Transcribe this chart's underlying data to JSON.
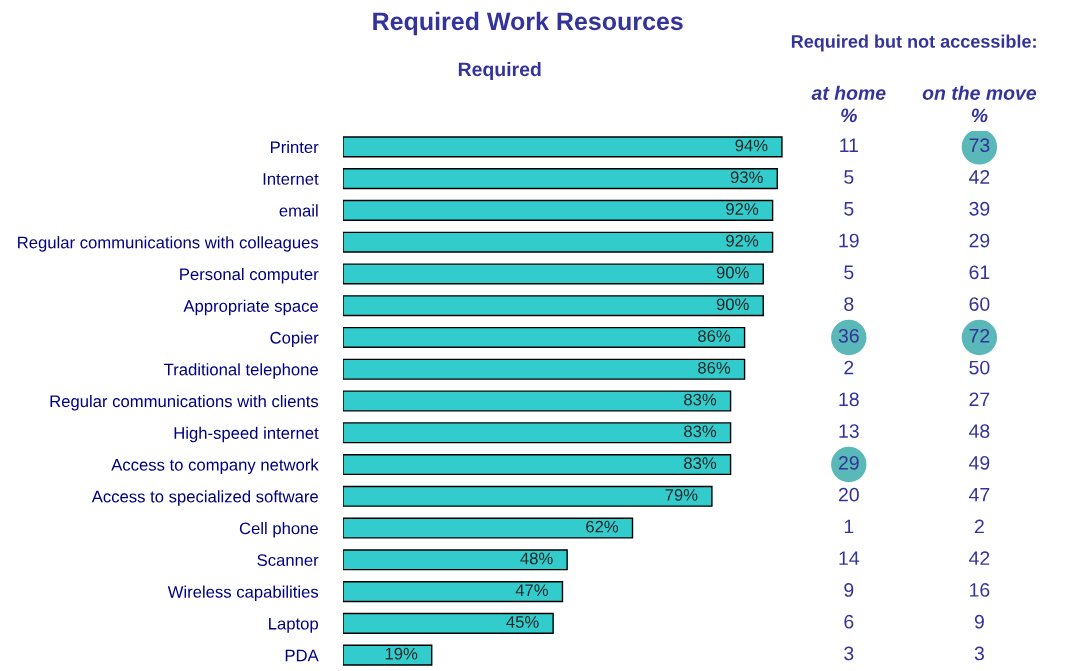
{
  "chart_data": [
    {
      "type": "bar",
      "orientation": "horizontal",
      "title": "Required Work Resources",
      "subtitle": "Required",
      "categories": [
        "Printer",
        "Internet",
        "email",
        "Regular communications with colleagues",
        "Personal computer",
        "Appropriate space",
        "Copier",
        "Traditional telephone",
        "Regular communications with clients",
        "High-speed internet",
        "Access to company network",
        "Access to specialized software",
        "Cell phone",
        "Scanner",
        "Wireless capabilities",
        "Laptop",
        "PDA"
      ],
      "values": [
        94,
        93,
        92,
        92,
        90,
        90,
        86,
        86,
        83,
        83,
        83,
        79,
        62,
        48,
        47,
        45,
        19
      ],
      "value_labels": [
        "94%",
        "93%",
        "92%",
        "92%",
        "90%",
        "90%",
        "86%",
        "86%",
        "83%",
        "83%",
        "83%",
        "79%",
        "62%",
        "48%",
        "47%",
        "45%",
        "19%"
      ],
      "color": "#33cccc",
      "tick_labels": "y",
      "grid": false,
      "legend": false
    },
    {
      "type": "heatmap",
      "title": "Required but not accessible:",
      "data_labels": true,
      "tick_labels": "x",
      "categories": [
        "at home\n%",
        "on the move\n%"
      ],
      "y_categories": [
        null,
        null,
        null,
        null,
        null,
        null,
        null,
        null,
        null,
        null,
        null,
        null,
        null,
        null,
        null,
        null,
        null
      ],
      "cells": [
        [
          11,
          73
        ],
        [
          5,
          42
        ],
        [
          5,
          39
        ],
        [
          19,
          29
        ],
        [
          5,
          61
        ],
        [
          8,
          60
        ],
        [
          36,
          72
        ],
        [
          2,
          50
        ],
        [
          18,
          27
        ],
        [
          13,
          48
        ],
        [
          29,
          49
        ],
        [
          20,
          47
        ],
        [
          1,
          2
        ],
        [
          14,
          42
        ],
        [
          9,
          16
        ],
        [
          6,
          9
        ],
        [
          3,
          3
        ]
      ],
      "colors": [
        [
          null,
          "#5ab8b8"
        ],
        [
          null,
          null
        ],
        [
          null,
          null
        ],
        [
          null,
          null
        ],
        [
          null,
          null
        ],
        [
          null,
          null
        ],
        [
          "#5ab8b8",
          "#5ab8b8"
        ],
        [
          null,
          null
        ],
        [
          null,
          null
        ],
        [
          null,
          null
        ],
        [
          "#5ab8b8",
          null
        ],
        [
          null,
          null
        ],
        [
          null,
          null
        ],
        [
          null,
          null
        ],
        [
          null,
          null
        ],
        [
          null,
          null
        ],
        [
          null,
          null
        ]
      ]
    }
  ]
}
